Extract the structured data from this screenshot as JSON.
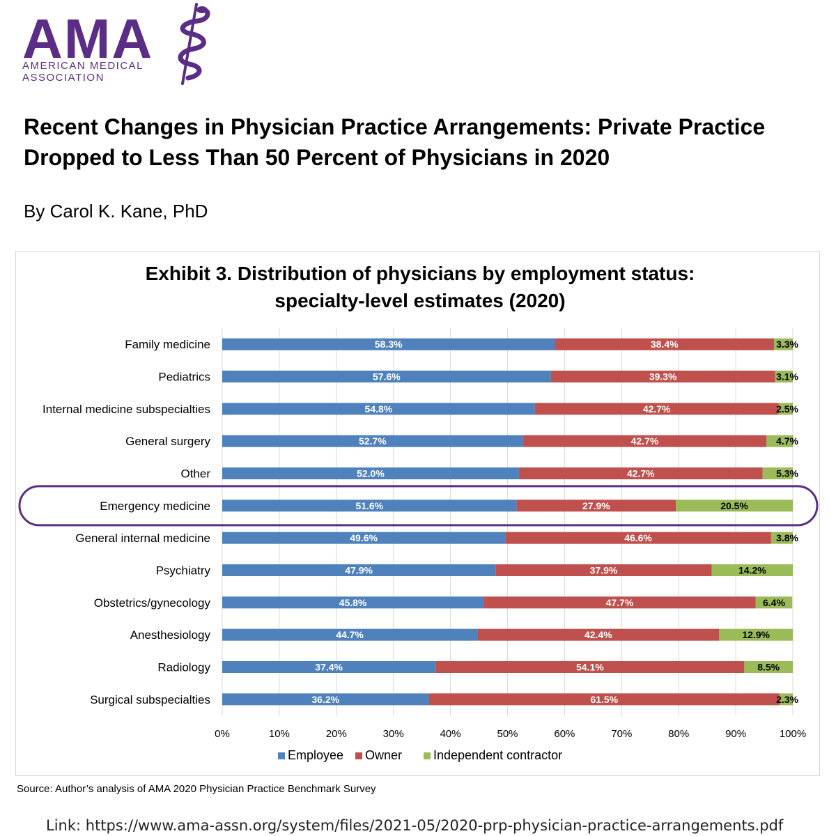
{
  "logo": {
    "wordmark": "AMA",
    "subtitle_line1": "AMERICAN MEDICAL",
    "subtitle_line2": "ASSOCIATION",
    "emblem": "staff-of-asclepius-icon",
    "color": "#5b2d86"
  },
  "document": {
    "title": "Recent Changes in Physician Practice Arrangements: Private Practice Dropped to Less Than 50 Percent of Physicians in 2020",
    "byline": "By Carol K. Kane, PhD",
    "source": "Source: Author’s analysis of AMA 2020 Physician Practice Benchmark Survey",
    "link": "Link: https://www.ama-assn.org/system/files/2021-05/2020-prp-physician-practice-arrangements.pdf"
  },
  "chart_data": {
    "type": "bar",
    "orientation": "horizontal",
    "stacked": true,
    "title_line1": "Exhibit 3. Distribution of physicians by employment status:",
    "title_line2": "specialty-level estimates (2020)",
    "categories": [
      "Family medicine",
      "Pediatrics",
      "Internal medicine subspecialties",
      "General surgery",
      "Other",
      "Emergency medicine",
      "General internal medicine",
      "Psychiatry",
      "Obstetrics/gynecology",
      "Anesthesiology",
      "Radiology",
      "Surgical subspecialties"
    ],
    "series": [
      {
        "name": "Employee",
        "color": "#4f81bd",
        "values": [
          58.3,
          57.6,
          54.8,
          52.7,
          52.0,
          51.6,
          49.6,
          47.9,
          45.8,
          44.7,
          37.4,
          36.2
        ]
      },
      {
        "name": "Owner",
        "color": "#c0504d",
        "values": [
          38.4,
          39.3,
          42.7,
          42.7,
          42.7,
          27.9,
          46.6,
          37.9,
          47.7,
          42.4,
          54.1,
          61.5
        ]
      },
      {
        "name": "Independent contractor",
        "color": "#9bbb59",
        "values": [
          3.3,
          3.1,
          2.5,
          4.7,
          5.3,
          20.5,
          3.8,
          14.2,
          6.4,
          12.9,
          8.5,
          2.3
        ]
      }
    ],
    "x_ticks": [
      "0%",
      "10%",
      "20%",
      "30%",
      "40%",
      "50%",
      "60%",
      "70%",
      "80%",
      "90%",
      "100%"
    ],
    "xlim": [
      0,
      100
    ],
    "grid": "vertical",
    "legend_position": "bottom",
    "highlighted_category": "Emergency medicine",
    "highlight_color": "#5b2d86"
  }
}
